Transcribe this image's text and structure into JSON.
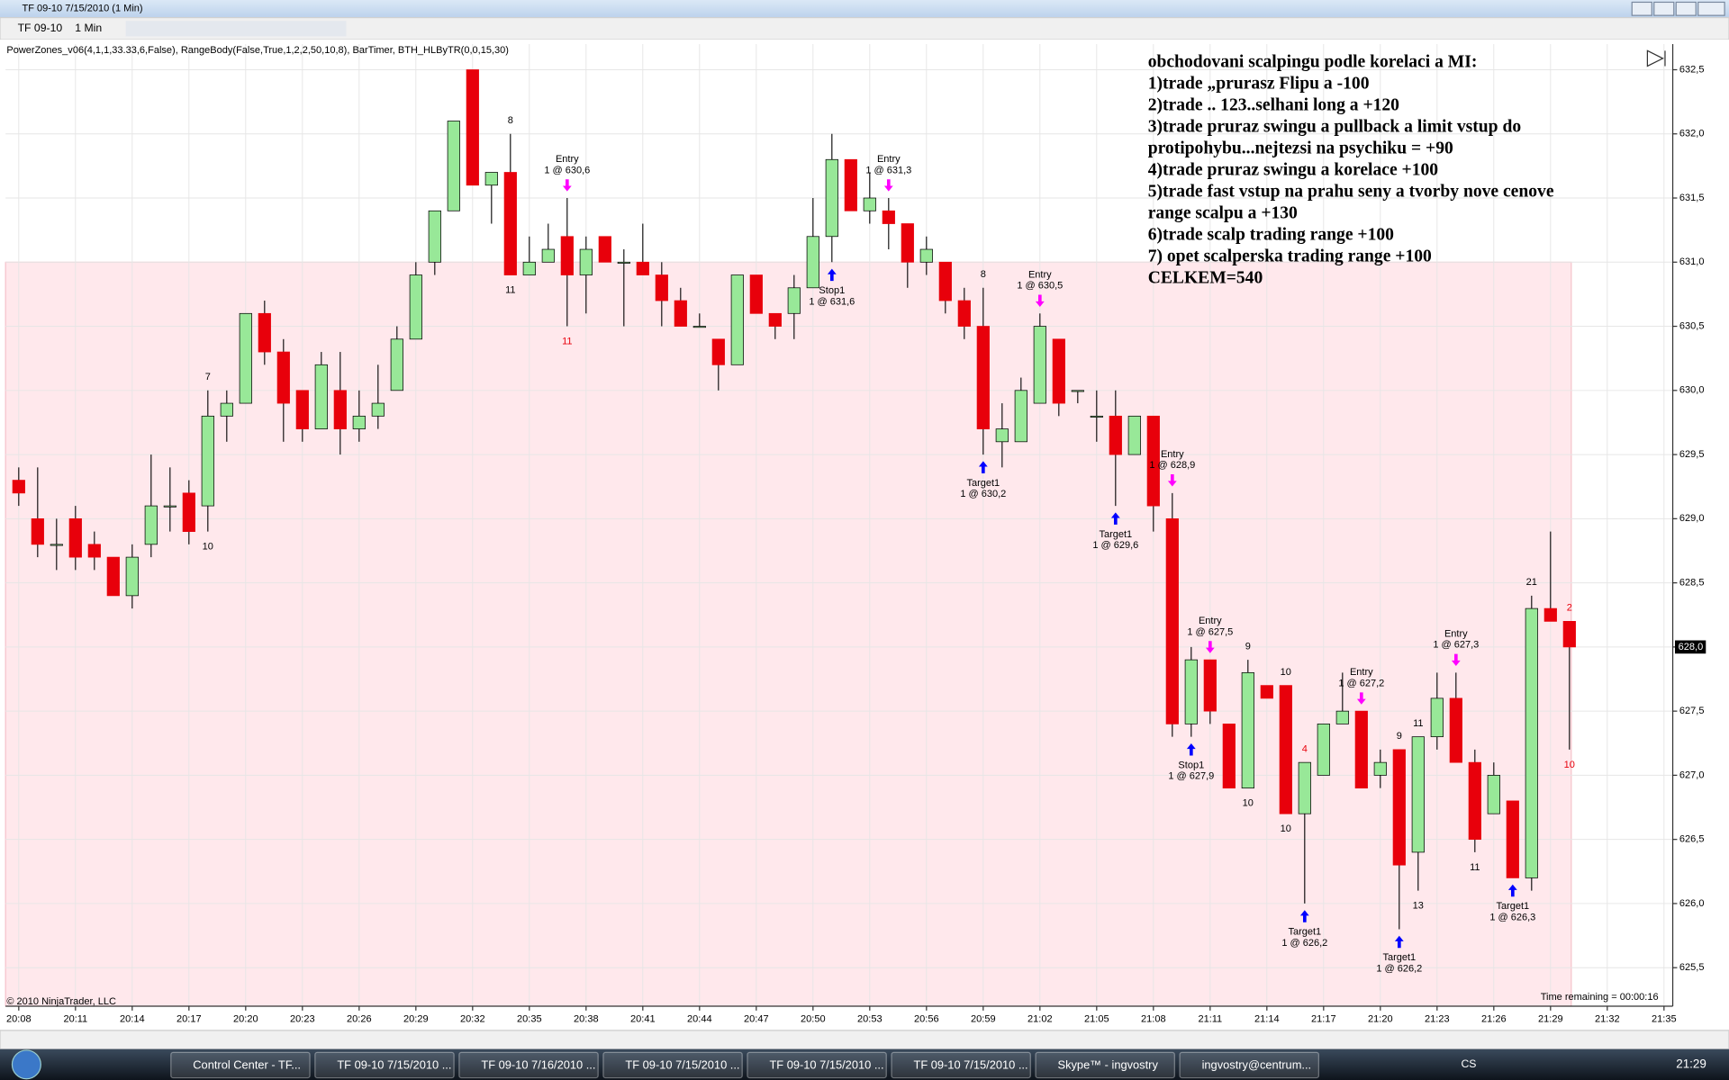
{
  "window": {
    "title": "TF 09-10  7/15/2010 (1 Min)"
  },
  "toolbar": {
    "instrument": "TF 09-10",
    "interval": "1 Min"
  },
  "indicators": "PowerZones_v06(4,1,1,33.33,6,False), RangeBody(False,True,1,2,2,50,10,8), BarTimer, BTH_HLByTR(0,0,15,30)",
  "copyright": "© 2010 NinjaTrader, LLC",
  "time_remaining": "Time remaining = 00:00:16",
  "notes": [
    "obchodovani scalpingu podle korelaci a MI:",
    "1)trade „prurasz Flipu a -100",
    "2)trade .. 123..selhani long a +120",
    "3)trade pruraz swingu a pullback a limit vstup do",
    "protipohybu...nejtezsi na psychiku = +90",
    "4)trade pruraz swingu a korelace +100",
    "5)trade fast vstup na prahu seny a tvorby nove cenove",
    "range scalpu a +130",
    "6)trade scalp trading range +100",
    "7) opet scalperska trading range +100",
    "CELKEM=540"
  ],
  "chart_data": {
    "type": "candlestick",
    "up_color": "#98e898",
    "down_color": "#e8000b",
    "zone_color": "#ffe8ec",
    "zone": [
      625.2,
      631.0
    ],
    "grid": true,
    "open": [
      629.3,
      629.0,
      628.8,
      629.0,
      628.8,
      628.7,
      628.4,
      628.8,
      629.1,
      629.2,
      629.1,
      629.8,
      629.9,
      630.6,
      630.3,
      630.0,
      629.7,
      630.0,
      629.7,
      629.8,
      630.0,
      630.4,
      631.0,
      631.4,
      632.5,
      631.6,
      631.7,
      630.9,
      631.0,
      631.2,
      630.9,
      631.2,
      631.0,
      631.0,
      630.9,
      630.7,
      630.5,
      630.4,
      630.2,
      630.9,
      630.6,
      630.6,
      630.8,
      631.2,
      631.8,
      631.4,
      631.4,
      631.3,
      631.0,
      631.0,
      630.7,
      630.5,
      629.6,
      629.6,
      629.9,
      630.4,
      630.0,
      629.8,
      629.8,
      629.5,
      629.8,
      629.0,
      627.4,
      627.9,
      627.4,
      626.9,
      627.7,
      627.7,
      626.7,
      627.0,
      627.4,
      627.5,
      627.0,
      627.2,
      626.4,
      627.3,
      627.6,
      627.1,
      626.7,
      626.8,
      626.2,
      628.3,
      628.2
    ],
    "high": [
      629.4,
      629.4,
      629.0,
      629.1,
      628.9,
      628.7,
      628.8,
      629.5,
      629.4,
      629.3,
      630.0,
      630.0,
      630.6,
      630.7,
      630.4,
      630.0,
      630.3,
      630.3,
      630.0,
      630.2,
      630.5,
      631.0,
      631.4,
      632.1,
      632.5,
      631.7,
      632.0,
      631.2,
      631.3,
      631.5,
      631.2,
      631.2,
      631.1,
      631.3,
      631.0,
      630.8,
      630.6,
      630.4,
      630.9,
      630.9,
      630.6,
      630.9,
      631.5,
      632.0,
      631.8,
      631.7,
      631.5,
      631.3,
      631.2,
      631.0,
      630.8,
      630.8,
      629.9,
      630.1,
      630.6,
      630.4,
      630.0,
      630.0,
      630.0,
      629.8,
      629.8,
      629.2,
      628.0,
      627.9,
      627.4,
      627.9,
      627.7,
      627.7,
      627.1,
      627.4,
      627.8,
      627.5,
      627.2,
      627.2,
      627.3,
      627.8,
      627.8,
      627.2,
      627.1,
      626.8,
      628.4,
      628.9,
      628.2
    ],
    "low": [
      629.1,
      628.7,
      628.6,
      628.6,
      628.6,
      628.4,
      628.3,
      628.7,
      628.9,
      628.8,
      628.9,
      629.6,
      629.9,
      630.2,
      629.6,
      629.6,
      629.7,
      629.5,
      629.6,
      629.7,
      630.0,
      630.4,
      630.9,
      631.4,
      631.6,
      631.3,
      630.9,
      630.9,
      631.0,
      630.5,
      630.6,
      631.0,
      630.5,
      630.9,
      630.5,
      630.5,
      630.5,
      630.0,
      630.2,
      630.6,
      630.4,
      630.4,
      630.8,
      631.0,
      631.4,
      631.3,
      631.1,
      630.8,
      630.9,
      630.6,
      630.4,
      629.5,
      629.4,
      629.6,
      629.9,
      629.8,
      629.9,
      629.6,
      629.1,
      629.5,
      628.9,
      627.3,
      627.3,
      627.4,
      626.9,
      626.9,
      627.6,
      626.7,
      626.0,
      627.0,
      627.4,
      626.9,
      626.9,
      625.8,
      626.1,
      627.2,
      627.1,
      626.4,
      626.7,
      626.2,
      626.1,
      628.2,
      627.2
    ],
    "close": [
      629.2,
      628.8,
      628.8,
      628.7,
      628.7,
      628.4,
      628.7,
      629.1,
      629.1,
      628.9,
      629.8,
      629.9,
      630.6,
      630.3,
      629.9,
      629.7,
      630.2,
      629.7,
      629.8,
      629.9,
      630.4,
      630.9,
      631.4,
      632.1,
      631.6,
      631.7,
      630.9,
      631.0,
      631.1,
      630.9,
      631.1,
      631.0,
      631.0,
      630.9,
      630.7,
      630.5,
      630.5,
      630.2,
      630.9,
      630.6,
      630.5,
      630.8,
      631.2,
      631.8,
      631.4,
      631.5,
      631.3,
      631.0,
      631.1,
      630.7,
      630.5,
      629.7,
      629.7,
      630.0,
      630.5,
      629.9,
      630.0,
      629.8,
      629.5,
      629.8,
      629.1,
      627.4,
      627.9,
      627.5,
      626.9,
      627.8,
      627.6,
      626.7,
      627.1,
      627.4,
      627.5,
      626.9,
      627.1,
      626.3,
      627.3,
      627.6,
      627.1,
      626.5,
      627.0,
      626.2,
      628.3,
      628.2,
      628.0
    ],
    "ylim": [
      625.2,
      632.7
    ],
    "yticks": [
      {
        "value": 625.5,
        "label": "625,5"
      },
      {
        "value": 626.0,
        "label": "626,0"
      },
      {
        "value": 626.5,
        "label": "626,5"
      },
      {
        "value": 627.0,
        "label": "627,0"
      },
      {
        "value": 627.5,
        "label": "627,5"
      },
      {
        "value": 628.0,
        "label": "628,0"
      },
      {
        "value": 628.5,
        "label": "628,5"
      },
      {
        "value": 629.0,
        "label": "629,0"
      },
      {
        "value": 629.5,
        "label": "629,5"
      },
      {
        "value": 630.0,
        "label": "630,0"
      },
      {
        "value": 630.5,
        "label": "630,5"
      },
      {
        "value": 631.0,
        "label": "631,0"
      },
      {
        "value": 631.5,
        "label": "631,5"
      },
      {
        "value": 632.0,
        "label": "632,0"
      },
      {
        "value": 632.5,
        "label": "632,5"
      }
    ],
    "last_price": {
      "value": 628.0,
      "label": "628,0"
    },
    "xticks": [
      "20:08",
      "20:11",
      "20:14",
      "20:17",
      "20:20",
      "20:23",
      "20:26",
      "20:29",
      "20:32",
      "20:35",
      "20:38",
      "20:41",
      "20:44",
      "20:47",
      "20:50",
      "20:53",
      "20:56",
      "20:59",
      "21:02",
      "21:05",
      "21:08",
      "21:11",
      "21:14",
      "21:17",
      "21:20",
      "21:23",
      "21:26",
      "21:29",
      "21:32",
      "21:35"
    ],
    "orders": [
      {
        "label": "Entry",
        "text": "1 @ 630,6",
        "bar": 29
      },
      {
        "label": "Stop1",
        "text": "1 @ 631,6",
        "bar": 43
      },
      {
        "label": "Entry",
        "text": "1 @ 631,3",
        "bar": 46
      },
      {
        "label": "Target1",
        "text": "1 @ 630,2",
        "bar": 51
      },
      {
        "label": "Entry",
        "text": "1 @ 630,5",
        "bar": 54
      },
      {
        "label": "Target1",
        "text": "1 @ 629,6",
        "bar": 58
      },
      {
        "label": "Entry",
        "text": "1 @ 628,9",
        "bar": 61
      },
      {
        "label": "Stop1",
        "text": "1 @ 627,9",
        "bar": 62
      },
      {
        "label": "Entry",
        "text": "1 @ 627,5",
        "bar": 63
      },
      {
        "label": "Target1",
        "text": "1 @ 626,2",
        "bar": 68
      },
      {
        "label": "Entry",
        "text": "1 @ 627,2",
        "bar": 71
      },
      {
        "label": "Target1",
        "text": "1 @ 626,2",
        "bar": 73
      },
      {
        "label": "Entry",
        "text": "1 @ 627,3",
        "bar": 76
      },
      {
        "label": "Target1",
        "text": "1 @ 626,3",
        "bar": 79
      }
    ],
    "swings": [
      {
        "text": "7",
        "bar": 10,
        "at": "high",
        "color": "#000000"
      },
      {
        "text": "10",
        "bar": 10,
        "at": "low",
        "color": "#000000"
      },
      {
        "text": "8",
        "bar": 26,
        "at": "high",
        "color": "#000000"
      },
      {
        "text": "11",
        "bar": 26,
        "at": "low",
        "color": "#000000"
      },
      {
        "text": "11",
        "bar": 29,
        "at": "low",
        "color": "#e8000b"
      },
      {
        "text": "8",
        "bar": 51,
        "at": "high",
        "color": "#000000"
      },
      {
        "text": "9",
        "bar": 65,
        "at": "high",
        "color": "#000000"
      },
      {
        "text": "10",
        "bar": 65,
        "at": "low",
        "color": "#000000"
      },
      {
        "text": "10",
        "bar": 67,
        "at": "high",
        "color": "#000000"
      },
      {
        "text": "10",
        "bar": 67,
        "at": "low",
        "color": "#000000"
      },
      {
        "text": "4",
        "bar": 68,
        "at": "high",
        "color": "#e8000b"
      },
      {
        "text": "9",
        "bar": 73,
        "at": "high",
        "color": "#000000"
      },
      {
        "text": "11",
        "bar": 74,
        "at": "high",
        "color": "#000000"
      },
      {
        "text": "13",
        "bar": 74,
        "at": "low",
        "color": "#000000"
      },
      {
        "text": "11",
        "bar": 77,
        "at": "low",
        "color": "#000000"
      },
      {
        "text": "21",
        "bar": 80,
        "at": "high",
        "color": "#000000"
      },
      {
        "text": "2",
        "bar": 82,
        "at": "high",
        "color": "#e8000b"
      },
      {
        "text": "10",
        "bar": 82,
        "at": "low",
        "color": "#e8000b"
      }
    ]
  },
  "taskbar": {
    "items": [
      "Control Center - TF...",
      "TF 09-10  7/15/2010 ...",
      "TF 09-10  7/16/2010 ...",
      "TF 09-10  7/15/2010 ...",
      "TF 09-10  7/15/2010 ...",
      "TF 09-10  7/15/2010 ...",
      "Skype™ - ingvostry",
      "ingvostry@centrum..."
    ],
    "language": "CS",
    "clock": "21:29"
  }
}
